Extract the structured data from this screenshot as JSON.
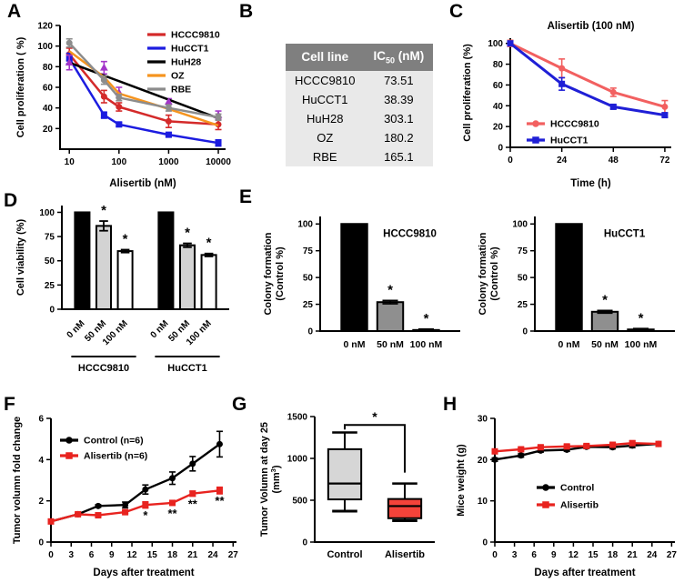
{
  "panels": {
    "A": "A",
    "B": "B",
    "C": "C",
    "D": "D",
    "E": "E",
    "F": "F",
    "G": "G",
    "H": "H"
  },
  "table": {
    "header": {
      "col1": "Cell line",
      "col2_pre": "IC",
      "col2_sub": "50",
      "col2_post": " (nM)"
    },
    "rows": [
      {
        "cell_line": "HCCC9810",
        "ic50": "73.51"
      },
      {
        "cell_line": "HuCCT1",
        "ic50": "38.39"
      },
      {
        "cell_line": "HuH28",
        "ic50": "303.1"
      },
      {
        "cell_line": "OZ",
        "ic50": "180.2"
      },
      {
        "cell_line": "RBE",
        "ic50": "165.1"
      }
    ]
  },
  "chart_data": [
    {
      "id": "A",
      "type": "line",
      "xscale": "log",
      "xlim": [
        6.5,
        14000
      ],
      "ylim": [
        0,
        120
      ],
      "x": [
        10,
        50,
        100,
        1000,
        10000
      ],
      "xticks": [
        10,
        100,
        1000,
        10000
      ],
      "yticks": [
        20,
        40,
        60,
        80,
        100,
        120
      ],
      "xlabel": "Alisertib (nM)",
      "ylabel": "Cell proliferation ( %)",
      "lw": 2.5,
      "legend_pos": "top-right",
      "series": [
        {
          "name": "HCCC9810",
          "color": "#d42a2a",
          "marker": "circle",
          "values": [
            92,
            51,
            41,
            27,
            24
          ],
          "errors": [
            6,
            6,
            4,
            6,
            5
          ]
        },
        {
          "name": "HuCCT1",
          "color": "#1c1ce0",
          "marker": "square",
          "values": [
            88,
            33,
            24,
            14,
            6
          ],
          "errors": [
            5,
            3,
            2,
            2,
            3
          ]
        },
        {
          "name": "HuH28",
          "color": "#000000",
          "marker": "triangle",
          "marker_color": "#a335c9",
          "err_color": "#a335c9",
          "values": [
            84,
            79,
            55,
            46,
            33
          ],
          "errors": [
            7,
            6,
            5,
            3,
            4
          ],
          "line_values": [
            84,
            71.4,
            66,
            48,
            30
          ]
        },
        {
          "name": "OZ",
          "color": "#f5941f",
          "marker": "none",
          "values": [
            95,
            70,
            54,
            39,
            23
          ]
        },
        {
          "name": "RBE",
          "color": "#8c8c8c",
          "marker": "circle",
          "values": [
            103,
            67,
            50,
            40,
            31
          ],
          "errors": [
            4,
            4,
            3,
            3,
            3
          ]
        }
      ]
    },
    {
      "id": "C",
      "type": "line",
      "xlim": [
        0,
        75
      ],
      "ylim": [
        0,
        105
      ],
      "x": [
        0,
        24,
        48,
        72
      ],
      "xticks": [
        0,
        24,
        48,
        72
      ],
      "yticks": [
        0,
        20,
        40,
        60,
        80,
        100
      ],
      "title": "Alisertib (100 nM)",
      "xlabel": "Time (h)",
      "ylabel": "Cell proliferation (%)",
      "lw": 3,
      "legend_pos": "bottom-left",
      "series": [
        {
          "name": "HCCC9810",
          "color": "#f26060",
          "marker": "circle",
          "values": [
            100,
            76,
            53,
            39
          ],
          "errors": [
            3,
            9,
            4,
            6
          ]
        },
        {
          "name": "HuCCT1",
          "color": "#1f1fd6",
          "marker": "square",
          "values": [
            100,
            61,
            39,
            31
          ],
          "errors": [
            2,
            6,
            2,
            2
          ]
        }
      ]
    },
    {
      "id": "D",
      "type": "bar",
      "ylim": [
        0,
        107
      ],
      "yticks": [
        0,
        25,
        50,
        75,
        100
      ],
      "ylabel": "Cell viability (%)",
      "rotate_labels": true,
      "groups": [
        {
          "label": "HCCC9810",
          "bars": [
            {
              "label": "0 nM",
              "value": 100,
              "err": 0,
              "fill": "#000000",
              "star": ""
            },
            {
              "label": "50 nM",
              "value": 86,
              "err": 5,
              "fill": "#d3d3d3",
              "star": "*"
            },
            {
              "label": "100 nM",
              "value": 60,
              "err": 1.5,
              "fill": "#ffffff",
              "star": "*"
            }
          ]
        },
        {
          "label": "HuCCT1",
          "bars": [
            {
              "label": "0 nM",
              "value": 100,
              "err": 0,
              "fill": "#000000",
              "star": ""
            },
            {
              "label": "50 nM",
              "value": 66,
              "err": 2,
              "fill": "#d3d3d3",
              "star": "*"
            },
            {
              "label": "100 nM",
              "value": 56,
              "err": 1.5,
              "fill": "#ffffff",
              "star": "*"
            }
          ]
        }
      ]
    },
    {
      "id": "E1",
      "type": "bar",
      "ylim": [
        0,
        107
      ],
      "yticks": [
        0,
        25,
        50,
        75,
        100
      ],
      "ylabel": [
        "Colony formation",
        "(Control %)"
      ],
      "inner_label": {
        "text": "HCCC9810",
        "fx": 0.64,
        "fy": 0.18
      },
      "groups": [
        {
          "label": "",
          "bars": [
            {
              "label": "0 nM",
              "value": 100,
              "err": 0,
              "fill": "#000000",
              "star": ""
            },
            {
              "label": "50 nM",
              "value": 27,
              "err": 1.5,
              "fill": "#8f8f8f",
              "star": "*"
            },
            {
              "label": "100 nM",
              "value": 1,
              "err": 0.8,
              "fill": "#000000",
              "star": "*"
            }
          ]
        }
      ]
    },
    {
      "id": "E2",
      "type": "bar",
      "ylim": [
        0,
        107
      ],
      "yticks": [
        0,
        25,
        50,
        75,
        100
      ],
      "ylabel": [
        "Colony formation",
        "(Control %)"
      ],
      "inner_label": {
        "text": "HuCCT1",
        "fx": 0.64,
        "fy": 0.18
      },
      "groups": [
        {
          "label": "",
          "bars": [
            {
              "label": "0 nM",
              "value": 100,
              "err": 0,
              "fill": "#000000",
              "star": ""
            },
            {
              "label": "50 nM",
              "value": 18,
              "err": 1.2,
              "fill": "#8f8f8f",
              "star": "*"
            },
            {
              "label": "100 nM",
              "value": 1.5,
              "err": 0.8,
              "fill": "#000000",
              "star": "*"
            }
          ]
        }
      ]
    },
    {
      "id": "F",
      "type": "line",
      "xlim": [
        0,
        27.5
      ],
      "ylim": [
        0,
        6
      ],
      "x": [
        0,
        4,
        7,
        11,
        14,
        18,
        21,
        25
      ],
      "xticks": [
        0,
        3,
        6,
        9,
        12,
        15,
        18,
        21,
        24,
        27
      ],
      "yticks": [
        0,
        2,
        4,
        6
      ],
      "xlabel": "Days after treatment",
      "ylabel": "Tumor volumn fold change",
      "lw": 2.4,
      "legend_pos": "top-left",
      "series": [
        {
          "name": "Control (n=6)",
          "color": "#000000",
          "marker": "circle",
          "values": [
            1.0,
            1.35,
            1.75,
            1.8,
            2.55,
            3.1,
            3.8,
            4.75
          ],
          "errors": [
            0,
            0.05,
            0.06,
            0.14,
            0.22,
            0.3,
            0.35,
            0.62
          ]
        },
        {
          "name": "Alisertib (n=6)",
          "color": "#e8231f",
          "marker": "square",
          "values": [
            1.0,
            1.35,
            1.3,
            1.45,
            1.8,
            1.9,
            2.35,
            2.5
          ],
          "errors": [
            0,
            0.05,
            0.05,
            0.06,
            0.15,
            0.1,
            0.12,
            0.16
          ]
        }
      ],
      "stars": [
        {
          "x": 14,
          "y": 1.1,
          "text": "*"
        },
        {
          "x": 18,
          "y": 1.2,
          "text": "**"
        },
        {
          "x": 21,
          "y": 1.65,
          "text": "**"
        },
        {
          "x": 25,
          "y": 1.8,
          "text": "**"
        }
      ]
    },
    {
      "id": "G",
      "type": "box",
      "ylim": [
        0,
        1500
      ],
      "yticks": [
        0,
        500,
        1000,
        1500
      ],
      "ylabel": [
        "Tumor Volumn at day 25",
        {
          "pre": "(mm",
          "sup": "3",
          "post": ")"
        }
      ],
      "boxes": [
        {
          "label": "Control",
          "min": 370,
          "q1": 510,
          "median": 700,
          "q3": 1110,
          "max": 1310,
          "fill": "#d6d6d6"
        },
        {
          "label": "Alisertib",
          "min": 255,
          "q1": 285,
          "median": 430,
          "q3": 515,
          "max": 700,
          "fill": "#f4433a"
        }
      ],
      "bracket": {
        "from": 0,
        "to": 1,
        "y": 1400,
        "y_from": 1345,
        "y_to": 830,
        "star": "*"
      }
    },
    {
      "id": "H",
      "type": "line",
      "xlim": [
        0,
        27.5
      ],
      "ylim": [
        0,
        30
      ],
      "x": [
        0,
        4,
        7,
        11,
        14,
        18,
        21,
        25
      ],
      "xticks": [
        0,
        3,
        6,
        9,
        12,
        15,
        18,
        21,
        24,
        27
      ],
      "yticks": [
        0,
        10,
        20,
        30
      ],
      "xlabel": "Days after treatment",
      "ylabel": "Mice weight (g)",
      "lw": 2.4,
      "legend_pos": "middle-left",
      "series": [
        {
          "name": "Control",
          "color": "#000000",
          "marker": "circle",
          "values": [
            20,
            21,
            22.2,
            22.4,
            23.1,
            23,
            23.4,
            23.8
          ],
          "errors": [
            0.4,
            0.4,
            0.4,
            0.4,
            0.4,
            0.4,
            0.5,
            0.5
          ]
        },
        {
          "name": "Alisertib",
          "color": "#e8231f",
          "marker": "square",
          "values": [
            22,
            22.5,
            23,
            23.2,
            23.3,
            23.6,
            24,
            23.8
          ],
          "errors": [
            0.4,
            0.4,
            0.4,
            0.4,
            0.4,
            0.4,
            0.5,
            0.5
          ]
        }
      ]
    }
  ]
}
